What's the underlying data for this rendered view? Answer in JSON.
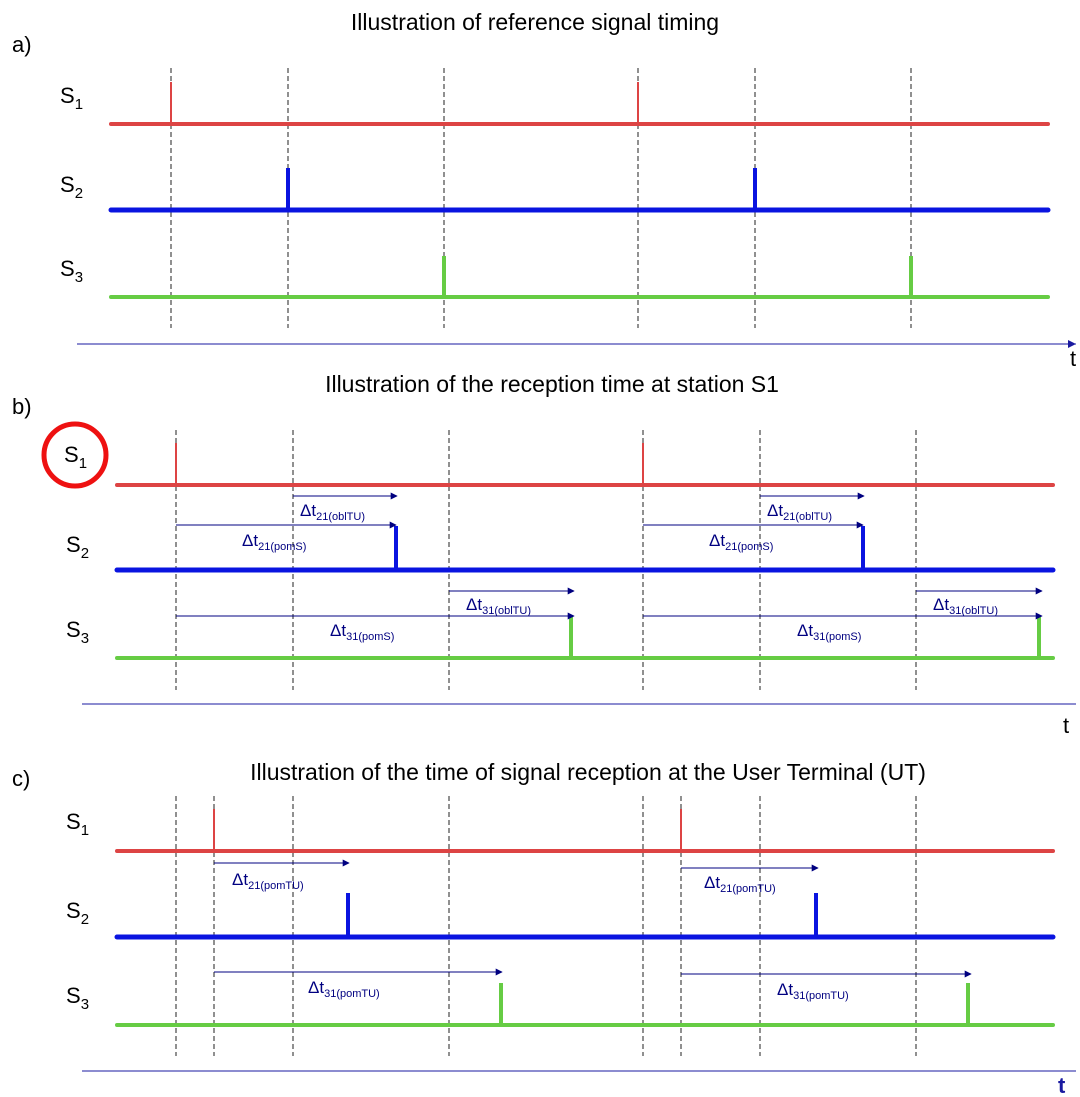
{
  "colors": {
    "s1": "#dd4444",
    "s2": "#0a14e0",
    "s3": "#66cc44",
    "dashed": "#222222",
    "axis": "#1a1aa0",
    "annotation": "#000080",
    "highlight_circle": "#ee1111"
  },
  "signal_names": [
    {
      "base": "S",
      "sub": "1"
    },
    {
      "base": "S",
      "sub": "2"
    },
    {
      "base": "S",
      "sub": "3"
    }
  ],
  "time_label": "t",
  "panels": [
    {
      "letter": "a)",
      "title": "Illustration of reference signal timing",
      "highlighted_signal": null,
      "annotations": []
    },
    {
      "letter": "b)",
      "title": "Illustration of the reception time at station S1",
      "highlighted_signal": "S1",
      "annotations": [
        {
          "base": "Δt",
          "sub": "21(oblTU)"
        },
        {
          "base": "Δt",
          "sub": "21(pomS)"
        },
        {
          "base": "Δt",
          "sub": "31(oblTU)"
        },
        {
          "base": "Δt",
          "sub": "31(pomS)"
        },
        {
          "base": "Δt",
          "sub": "21(oblTU)"
        },
        {
          "base": "Δt",
          "sub": "21(pomS)"
        },
        {
          "base": "Δt",
          "sub": "31(oblTU)"
        },
        {
          "base": "Δt",
          "sub": "31(pomS)"
        }
      ]
    },
    {
      "letter": "c)",
      "title": "Illustration of the time of signal reception at the User Terminal (UT)",
      "highlighted_signal": null,
      "annotations": [
        {
          "base": "Δt",
          "sub": "21(pomTU)"
        },
        {
          "base": "Δt",
          "sub": "31(pomTU)"
        },
        {
          "base": "Δt",
          "sub": "21(pomTU)"
        },
        {
          "base": "Δt",
          "sub": "31(pomTU)"
        }
      ]
    }
  ]
}
